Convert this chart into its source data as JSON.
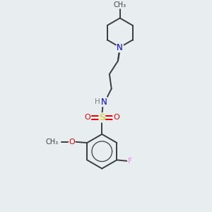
{
  "bg_color": "#e8eef0",
  "atom_colors": {
    "C": "#3d3d3d",
    "N": "#0000ee",
    "O": "#ee0000",
    "S": "#cccc00",
    "F": "#ee82ee",
    "H": "#808080"
  },
  "bond_color": "#3d3d3d",
  "bond_width": 1.4,
  "figsize": [
    3.0,
    3.0
  ],
  "dpi": 100,
  "xlim": [
    0,
    10
  ],
  "ylim": [
    0,
    10
  ]
}
